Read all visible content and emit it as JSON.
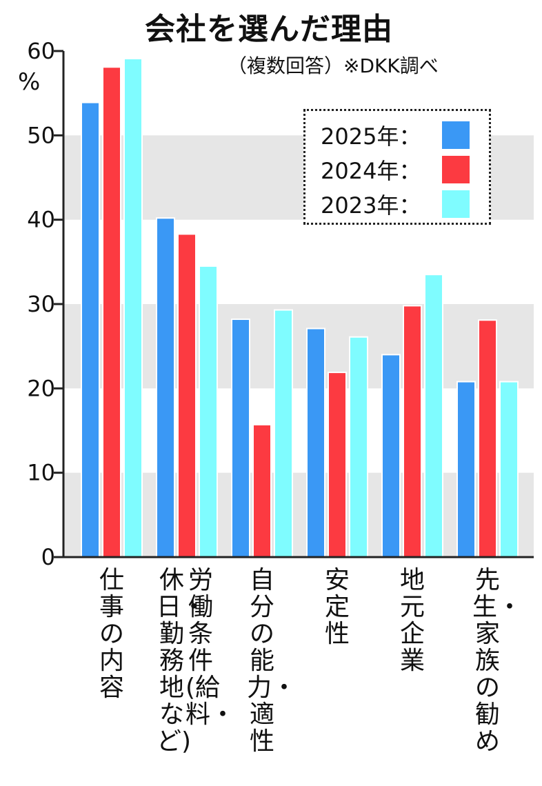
{
  "chart_data": {
    "type": "bar",
    "title": "会社を選んだ理由",
    "subtitle": "（複数回答）※DKK調べ",
    "ylabel": "%",
    "ylim": [
      0,
      60
    ],
    "yticks": [
      0,
      10,
      20,
      30,
      40,
      50,
      60
    ],
    "ytick_labels": [
      "0",
      "10",
      "20",
      "30",
      "40",
      "50",
      "60"
    ],
    "grid_bands": "alternating",
    "legend_position": "top-right",
    "categories": [
      "仕事の内容",
      "労働条件(給料・休日・勤務地など)",
      "自分の能力・適性",
      "安定性",
      "地元企業",
      "先生・家族の勧め"
    ],
    "category_columns": [
      [
        "仕事の内容"
      ],
      [
        "労働条件(給料・",
        "休日・勤務地など)"
      ],
      [
        "自分の能力・適性"
      ],
      [
        "安定性"
      ],
      [
        "地元企業"
      ],
      [
        "先生・家族の勧め"
      ]
    ],
    "series": [
      {
        "name": "2025年",
        "legend_label": "2025年：",
        "color": "#3a98f5",
        "values": [
          53.9,
          40.2,
          28.2,
          27.1,
          24.0,
          20.8
        ]
      },
      {
        "name": "2024年",
        "legend_label": "2024年：",
        "color": "#fc3a41",
        "values": [
          58.1,
          38.3,
          15.7,
          21.9,
          29.8,
          28.1
        ]
      },
      {
        "name": "2023年",
        "legend_label": "2023年：",
        "color": "#7ffcff",
        "values": [
          59.1,
          34.5,
          29.3,
          26.1,
          33.5,
          20.8
        ]
      }
    ]
  },
  "colors": {
    "band": "#e6e6e6",
    "axis": "#222222"
  }
}
